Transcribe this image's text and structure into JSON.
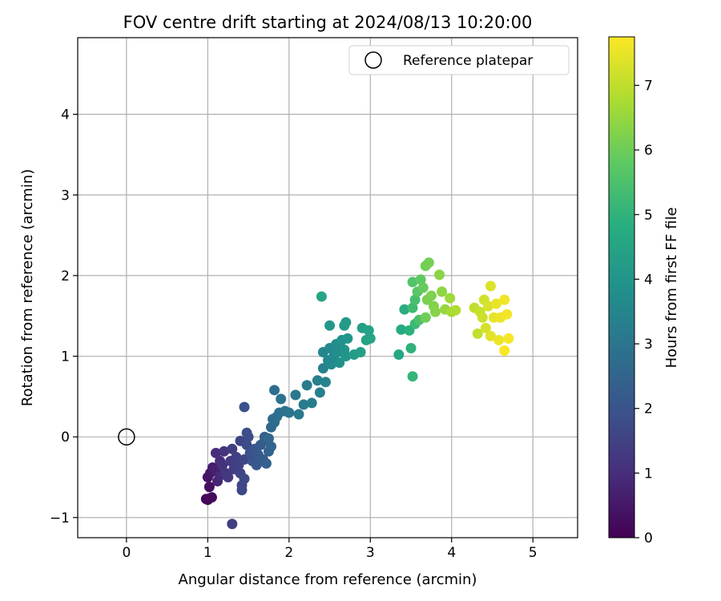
{
  "chart_data": {
    "type": "scatter",
    "title": "FOV centre drift starting at 2024/08/13 10:20:00",
    "xlabel": "Angular distance from reference (arcmin)",
    "ylabel": "Rotation from reference (arcmin)",
    "xlim": [
      -0.6,
      5.55
    ],
    "ylim": [
      -1.25,
      4.95
    ],
    "xticks": [
      0,
      1,
      2,
      3,
      4,
      5
    ],
    "xtick_labels": [
      "0",
      "1",
      "2",
      "3",
      "4",
      "5"
    ],
    "yticks": [
      -1,
      0,
      1,
      2,
      3,
      4
    ],
    "ytick_labels": [
      "−1",
      "0",
      "1",
      "2",
      "3",
      "4"
    ],
    "grid": true,
    "legend": {
      "position": "top-right",
      "entries": [
        {
          "label": "Reference platepar"
        }
      ]
    },
    "reference_point": {
      "x": 0,
      "y": 0,
      "marker": "open-circle"
    },
    "colorbar": {
      "label": "Hours from first FF file",
      "range": [
        0,
        7.75
      ],
      "ticks": [
        0,
        1,
        2,
        3,
        4,
        5,
        6,
        7
      ],
      "tick_labels": [
        "0",
        "1",
        "2",
        "3",
        "4",
        "5",
        "6",
        "7"
      ],
      "colormap": "viridis"
    },
    "points": [
      {
        "x": 0.98,
        "y": -0.77,
        "t": 0.05
      },
      {
        "x": 1.0,
        "y": -0.78,
        "t": 0.1
      },
      {
        "x": 1.05,
        "y": -0.75,
        "t": 0.2
      },
      {
        "x": 1.02,
        "y": -0.62,
        "t": 0.3
      },
      {
        "x": 1.0,
        "y": -0.5,
        "t": 0.4
      },
      {
        "x": 1.03,
        "y": -0.45,
        "t": 0.5
      },
      {
        "x": 1.06,
        "y": -0.38,
        "t": 0.6
      },
      {
        "x": 1.1,
        "y": -0.42,
        "t": 0.7
      },
      {
        "x": 1.12,
        "y": -0.55,
        "t": 0.8
      },
      {
        "x": 1.15,
        "y": -0.48,
        "t": 0.9
      },
      {
        "x": 1.1,
        "y": -0.2,
        "t": 1.0
      },
      {
        "x": 1.15,
        "y": -0.3,
        "t": 1.05
      },
      {
        "x": 1.18,
        "y": -0.35,
        "t": 1.1
      },
      {
        "x": 1.2,
        "y": -0.18,
        "t": 1.15
      },
      {
        "x": 1.22,
        "y": -0.45,
        "t": 1.2
      },
      {
        "x": 1.25,
        "y": -0.5,
        "t": 1.25
      },
      {
        "x": 1.28,
        "y": -0.3,
        "t": 1.3
      },
      {
        "x": 1.3,
        "y": -0.15,
        "t": 1.35
      },
      {
        "x": 1.32,
        "y": -0.4,
        "t": 1.4
      },
      {
        "x": 1.35,
        "y": -0.25,
        "t": 1.45
      },
      {
        "x": 1.3,
        "y": -1.08,
        "t": 1.45
      },
      {
        "x": 1.38,
        "y": -0.35,
        "t": 1.5
      },
      {
        "x": 1.4,
        "y": -0.45,
        "t": 1.55
      },
      {
        "x": 1.42,
        "y": -0.6,
        "t": 1.58
      },
      {
        "x": 1.4,
        "y": -0.05,
        "t": 1.6
      },
      {
        "x": 1.45,
        "y": -0.28,
        "t": 1.65
      },
      {
        "x": 1.42,
        "y": -0.66,
        "t": 1.68
      },
      {
        "x": 1.45,
        "y": -0.52,
        "t": 1.7
      },
      {
        "x": 1.48,
        "y": -0.1,
        "t": 1.75
      },
      {
        "x": 1.5,
        "y": 0.0,
        "t": 1.8
      },
      {
        "x": 1.48,
        "y": 0.05,
        "t": 1.85
      },
      {
        "x": 1.52,
        "y": -0.2,
        "t": 1.9
      },
      {
        "x": 1.45,
        "y": 0.37,
        "t": 1.95
      },
      {
        "x": 1.55,
        "y": -0.3,
        "t": 2.0
      },
      {
        "x": 1.58,
        "y": -0.15,
        "t": 2.05
      },
      {
        "x": 1.6,
        "y": -0.35,
        "t": 2.1
      },
      {
        "x": 1.62,
        "y": -0.22,
        "t": 2.15
      },
      {
        "x": 1.65,
        "y": -0.1,
        "t": 2.2
      },
      {
        "x": 1.68,
        "y": -0.28,
        "t": 2.25
      },
      {
        "x": 1.7,
        "y": -0.05,
        "t": 2.3
      },
      {
        "x": 1.7,
        "y": 0.0,
        "t": 2.35
      },
      {
        "x": 1.72,
        "y": -0.33,
        "t": 2.4
      },
      {
        "x": 1.75,
        "y": -0.18,
        "t": 2.45
      },
      {
        "x": 1.78,
        "y": -0.12,
        "t": 2.5
      },
      {
        "x": 1.75,
        "y": -0.02,
        "t": 2.55
      },
      {
        "x": 1.78,
        "y": 0.12,
        "t": 2.6
      },
      {
        "x": 1.8,
        "y": 0.22,
        "t": 2.65
      },
      {
        "x": 1.82,
        "y": 0.18,
        "t": 2.7
      },
      {
        "x": 1.85,
        "y": 0.25,
        "t": 2.75
      },
      {
        "x": 1.82,
        "y": 0.58,
        "t": 2.8
      },
      {
        "x": 1.88,
        "y": 0.3,
        "t": 2.85
      },
      {
        "x": 1.9,
        "y": 0.47,
        "t": 2.9
      },
      {
        "x": 1.95,
        "y": 0.32,
        "t": 2.95
      },
      {
        "x": 2.0,
        "y": 0.3,
        "t": 3.0
      },
      {
        "x": 2.08,
        "y": 0.52,
        "t": 3.05
      },
      {
        "x": 2.12,
        "y": 0.28,
        "t": 3.1
      },
      {
        "x": 2.18,
        "y": 0.4,
        "t": 3.15
      },
      {
        "x": 2.22,
        "y": 0.64,
        "t": 3.2
      },
      {
        "x": 2.28,
        "y": 0.42,
        "t": 3.25
      },
      {
        "x": 2.35,
        "y": 0.7,
        "t": 3.3
      },
      {
        "x": 2.38,
        "y": 0.55,
        "t": 3.35
      },
      {
        "x": 2.42,
        "y": 0.85,
        "t": 3.4
      },
      {
        "x": 2.45,
        "y": 0.68,
        "t": 3.45
      },
      {
        "x": 2.42,
        "y": 1.05,
        "t": 3.5
      },
      {
        "x": 2.48,
        "y": 0.95,
        "t": 3.55
      },
      {
        "x": 2.5,
        "y": 1.1,
        "t": 3.6
      },
      {
        "x": 2.52,
        "y": 0.9,
        "t": 3.65
      },
      {
        "x": 2.55,
        "y": 1.0,
        "t": 3.7
      },
      {
        "x": 2.58,
        "y": 1.15,
        "t": 3.75
      },
      {
        "x": 2.6,
        "y": 1.05,
        "t": 3.8
      },
      {
        "x": 2.62,
        "y": 0.92,
        "t": 3.85
      },
      {
        "x": 2.65,
        "y": 1.2,
        "t": 3.9
      },
      {
        "x": 2.68,
        "y": 1.08,
        "t": 3.95
      },
      {
        "x": 2.7,
        "y": 1.0,
        "t": 4.0
      },
      {
        "x": 2.72,
        "y": 1.22,
        "t": 4.05
      },
      {
        "x": 2.5,
        "y": 1.38,
        "t": 4.1
      },
      {
        "x": 2.68,
        "y": 1.38,
        "t": 4.15
      },
      {
        "x": 2.7,
        "y": 1.42,
        "t": 4.2
      },
      {
        "x": 2.8,
        "y": 1.02,
        "t": 4.25
      },
      {
        "x": 2.88,
        "y": 1.05,
        "t": 4.3
      },
      {
        "x": 2.9,
        "y": 1.35,
        "t": 4.35
      },
      {
        "x": 2.95,
        "y": 1.2,
        "t": 4.4
      },
      {
        "x": 2.98,
        "y": 1.32,
        "t": 4.45
      },
      {
        "x": 3.0,
        "y": 1.22,
        "t": 4.5
      },
      {
        "x": 2.4,
        "y": 1.74,
        "t": 4.55
      },
      {
        "x": 3.35,
        "y": 1.02,
        "t": 4.6
      },
      {
        "x": 3.38,
        "y": 1.33,
        "t": 4.7
      },
      {
        "x": 3.42,
        "y": 1.58,
        "t": 4.8
      },
      {
        "x": 3.48,
        "y": 1.32,
        "t": 4.9
      },
      {
        "x": 3.5,
        "y": 1.1,
        "t": 5.0
      },
      {
        "x": 3.52,
        "y": 0.75,
        "t": 5.1
      },
      {
        "x": 3.55,
        "y": 1.4,
        "t": 5.2
      },
      {
        "x": 3.52,
        "y": 1.6,
        "t": 5.3
      },
      {
        "x": 3.55,
        "y": 1.7,
        "t": 5.4
      },
      {
        "x": 3.6,
        "y": 1.45,
        "t": 5.5
      },
      {
        "x": 3.52,
        "y": 1.92,
        "t": 5.6
      },
      {
        "x": 3.58,
        "y": 1.8,
        "t": 5.7
      },
      {
        "x": 3.62,
        "y": 1.95,
        "t": 5.8
      },
      {
        "x": 3.65,
        "y": 1.85,
        "t": 5.9
      },
      {
        "x": 3.68,
        "y": 1.48,
        "t": 6.0
      },
      {
        "x": 3.68,
        "y": 2.12,
        "t": 6.05
      },
      {
        "x": 3.72,
        "y": 2.16,
        "t": 6.1
      },
      {
        "x": 3.7,
        "y": 1.7,
        "t": 6.15
      },
      {
        "x": 3.75,
        "y": 1.75,
        "t": 6.2
      },
      {
        "x": 3.78,
        "y": 1.62,
        "t": 6.25
      },
      {
        "x": 3.8,
        "y": 1.55,
        "t": 6.3
      },
      {
        "x": 3.85,
        "y": 2.01,
        "t": 6.35
      },
      {
        "x": 3.88,
        "y": 1.8,
        "t": 6.4
      },
      {
        "x": 3.92,
        "y": 1.58,
        "t": 6.5
      },
      {
        "x": 3.98,
        "y": 1.72,
        "t": 6.6
      },
      {
        "x": 4.0,
        "y": 1.55,
        "t": 6.7
      },
      {
        "x": 4.05,
        "y": 1.57,
        "t": 6.8
      },
      {
        "x": 4.28,
        "y": 1.6,
        "t": 7.0
      },
      {
        "x": 4.32,
        "y": 1.28,
        "t": 7.05
      },
      {
        "x": 4.35,
        "y": 1.55,
        "t": 7.1
      },
      {
        "x": 4.38,
        "y": 1.48,
        "t": 7.15
      },
      {
        "x": 4.4,
        "y": 1.7,
        "t": 7.2
      },
      {
        "x": 4.42,
        "y": 1.35,
        "t": 7.25
      },
      {
        "x": 4.45,
        "y": 1.62,
        "t": 7.3
      },
      {
        "x": 4.48,
        "y": 1.87,
        "t": 7.35
      },
      {
        "x": 4.48,
        "y": 1.25,
        "t": 7.4
      },
      {
        "x": 4.52,
        "y": 1.48,
        "t": 7.45
      },
      {
        "x": 4.55,
        "y": 1.65,
        "t": 7.5
      },
      {
        "x": 4.58,
        "y": 1.2,
        "t": 7.55
      },
      {
        "x": 4.6,
        "y": 1.48,
        "t": 7.58
      },
      {
        "x": 4.65,
        "y": 1.7,
        "t": 7.6
      },
      {
        "x": 4.68,
        "y": 1.52,
        "t": 7.62
      },
      {
        "x": 4.7,
        "y": 1.22,
        "t": 7.65
      },
      {
        "x": 4.65,
        "y": 1.07,
        "t": 7.7
      }
    ]
  }
}
